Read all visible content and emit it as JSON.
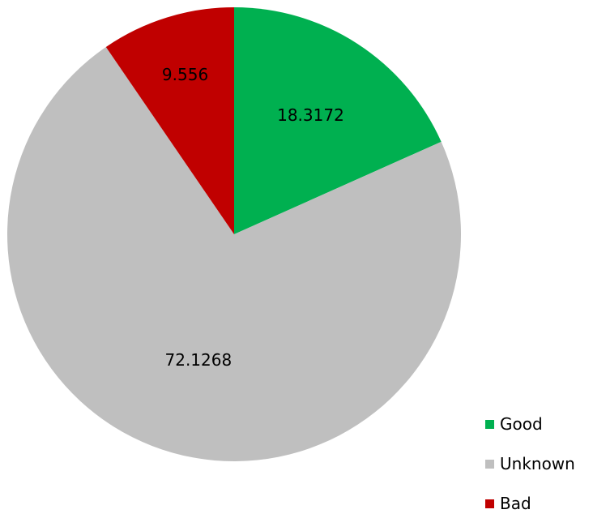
{
  "chart_data": {
    "type": "pie",
    "categories": [
      "Good",
      "Unknown",
      "Bad"
    ],
    "values": [
      18.3172,
      72.1268,
      9.556
    ],
    "value_labels": [
      "18.3172",
      "72.1268",
      "9.556"
    ],
    "colors": [
      "#00B050",
      "#BFBFBF",
      "#C00000"
    ],
    "start_angle_deg": 0,
    "direction": "clockwise",
    "legend": "bottom-right",
    "title": ""
  }
}
